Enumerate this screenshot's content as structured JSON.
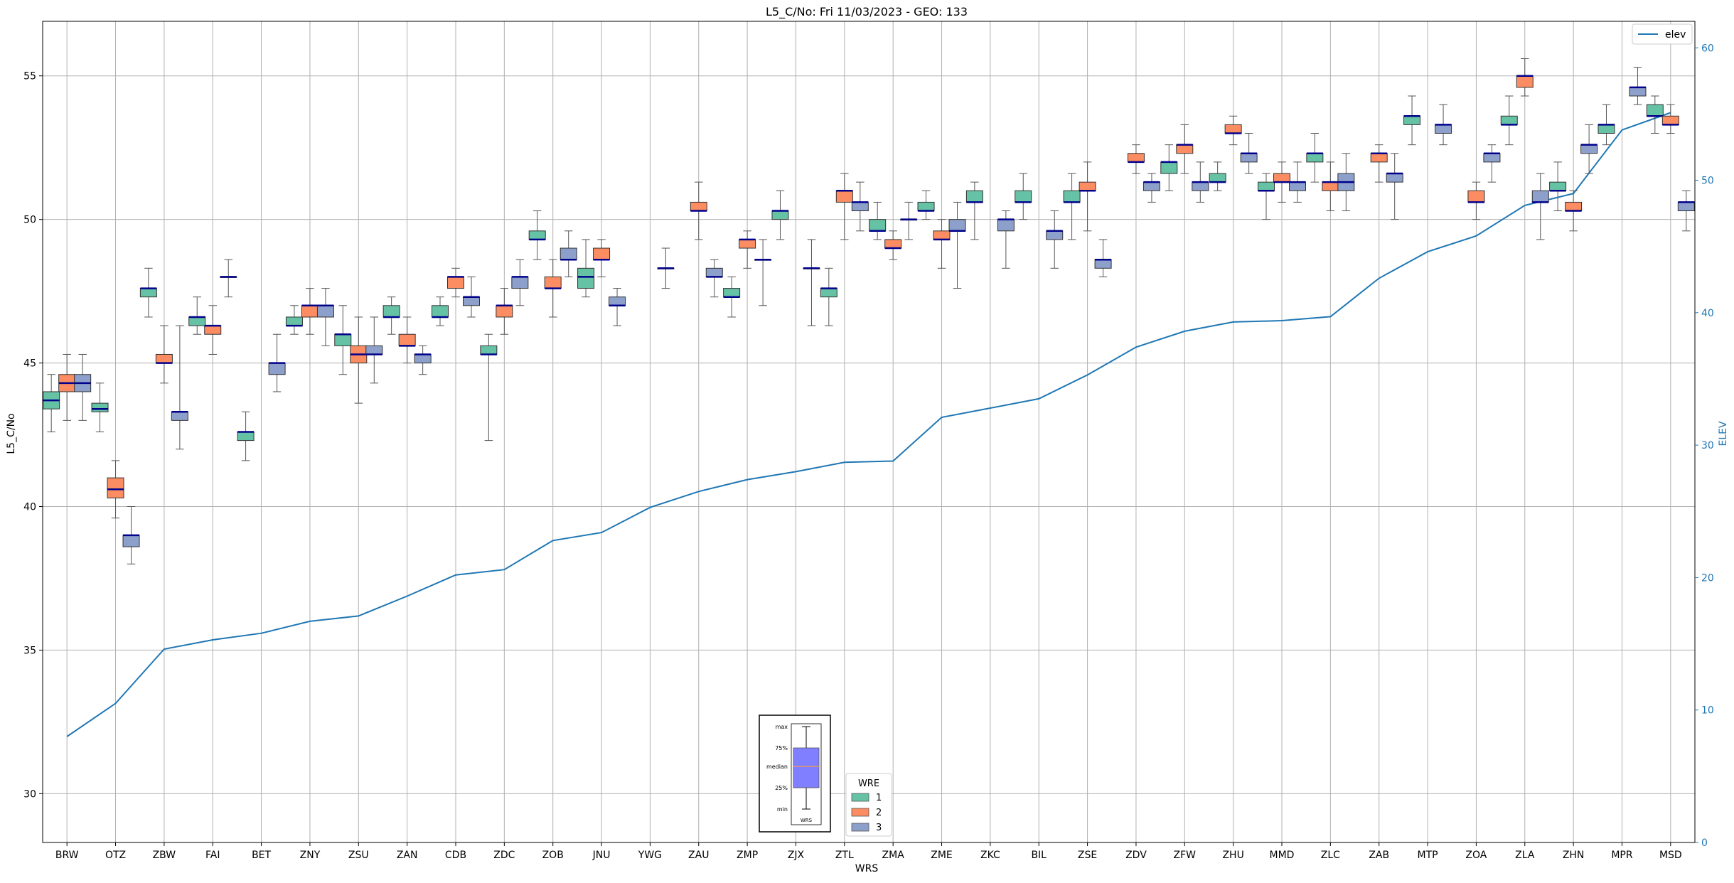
{
  "chart_data": {
    "type": "box",
    "title": "L5_C/No: Fri 11/03/2023 - GEO: 133",
    "xlabel": "WRS",
    "ylabel": "L5_C/No",
    "y2label": "ELEV",
    "ylim": [
      28.3,
      56.9
    ],
    "y2lim": [
      0,
      62
    ],
    "yticks": [
      30,
      35,
      40,
      45,
      50,
      55
    ],
    "y2ticks": [
      0,
      10,
      20,
      30,
      40,
      50,
      60
    ],
    "grid": true,
    "categories": [
      "BRW",
      "OTZ",
      "ZBW",
      "FAI",
      "BET",
      "ZNY",
      "ZSU",
      "ZAN",
      "CDB",
      "ZDC",
      "ZOB",
      "JNU",
      "YWG",
      "ZAU",
      "ZMP",
      "ZJX",
      "ZTL",
      "ZMA",
      "ZME",
      "ZKC",
      "BIL",
      "ZSE",
      "ZDV",
      "ZFW",
      "ZHU",
      "MMD",
      "ZLC",
      "ZAB",
      "MTP",
      "ZOA",
      "ZLA",
      "ZHN",
      "MPR",
      "MSD"
    ],
    "colors": {
      "1": "#66c2a5",
      "2": "#fc8d62",
      "3": "#8da0cb",
      "median": "#00008b",
      "elev": "#1f77b4",
      "whisker": "#555555",
      "grid": "#b0b0b0"
    },
    "legend_group": {
      "title": "WRE",
      "entries": [
        "1",
        "2",
        "3"
      ],
      "placement": "bottom-center"
    },
    "legend_elev": {
      "label": "elev",
      "placement": "top-right"
    },
    "legend_key": {
      "labels": [
        "max",
        "75%",
        "median",
        "25%",
        "min"
      ],
      "xlabel": "WRS",
      "placement": "bottom-center"
    },
    "series": [
      {
        "name": "1",
        "boxes": [
          {
            "cat": "BRW",
            "whislo": 42.6,
            "q1": 43.4,
            "med": 43.7,
            "q3": 44.0,
            "whishi": 44.6
          },
          {
            "cat": "OTZ",
            "whislo": 42.6,
            "q1": 43.3,
            "med": 43.4,
            "q3": 43.6,
            "whishi": 44.3
          },
          {
            "cat": "ZBW",
            "whislo": 46.6,
            "q1": 47.3,
            "med": 47.6,
            "q3": 47.6,
            "whishi": 48.3
          },
          {
            "cat": "FAI",
            "whislo": 46.0,
            "q1": 46.3,
            "med": 46.6,
            "q3": 46.6,
            "whishi": 47.3
          },
          {
            "cat": "BET",
            "whislo": 41.6,
            "q1": 42.3,
            "med": 42.6,
            "q3": 42.6,
            "whishi": 43.3
          },
          {
            "cat": "ZNY",
            "whislo": 46.0,
            "q1": 46.3,
            "med": 46.3,
            "q3": 46.6,
            "whishi": 47.0
          },
          {
            "cat": "ZSU",
            "whislo": 44.6,
            "q1": 45.6,
            "med": 46.0,
            "q3": 46.0,
            "whishi": 47.0
          },
          {
            "cat": "ZAN",
            "whislo": 46.0,
            "q1": 46.6,
            "med": 46.6,
            "q3": 47.0,
            "whishi": 47.3
          },
          {
            "cat": "CDB",
            "whislo": 46.3,
            "q1": 46.6,
            "med": 46.6,
            "q3": 47.0,
            "whishi": 47.3
          },
          {
            "cat": "ZDC",
            "whislo": 42.3,
            "q1": 45.3,
            "med": 45.3,
            "q3": 45.6,
            "whishi": 46.0
          },
          {
            "cat": "ZOB",
            "whislo": 48.6,
            "q1": 49.3,
            "med": 49.3,
            "q3": 49.6,
            "whishi": 50.3
          },
          {
            "cat": "JNU",
            "whislo": 47.3,
            "q1": 47.6,
            "med": 48.0,
            "q3": 48.3,
            "whishi": 49.3
          },
          {
            "cat": "ZMP",
            "whislo": 46.6,
            "q1": 47.3,
            "med": 47.3,
            "q3": 47.6,
            "whishi": 48.0
          },
          {
            "cat": "ZJX",
            "whislo": 49.3,
            "q1": 50.0,
            "med": 50.3,
            "q3": 50.3,
            "whishi": 51.0
          },
          {
            "cat": "ZTL",
            "whislo": 46.3,
            "q1": 47.3,
            "med": 47.6,
            "q3": 47.6,
            "whishi": 48.3
          },
          {
            "cat": "ZMA",
            "whislo": 49.3,
            "q1": 49.6,
            "med": 49.6,
            "q3": 50.0,
            "whishi": 50.6
          },
          {
            "cat": "ZME",
            "whislo": 50.0,
            "q1": 50.3,
            "med": 50.3,
            "q3": 50.6,
            "whishi": 51.0
          },
          {
            "cat": "ZKC",
            "whislo": 49.3,
            "q1": 50.6,
            "med": 50.6,
            "q3": 51.0,
            "whishi": 51.3
          },
          {
            "cat": "BIL",
            "whislo": 50.0,
            "q1": 50.6,
            "med": 50.6,
            "q3": 51.0,
            "whishi": 51.6
          },
          {
            "cat": "ZSE",
            "whislo": 49.3,
            "q1": 50.6,
            "med": 50.6,
            "q3": 51.0,
            "whishi": 51.6
          },
          {
            "cat": "ZFW",
            "whislo": 51.0,
            "q1": 51.6,
            "med": 52.0,
            "q3": 52.0,
            "whishi": 52.6
          },
          {
            "cat": "ZHU",
            "whislo": 51.0,
            "q1": 51.3,
            "med": 51.3,
            "q3": 51.6,
            "whishi": 52.0
          },
          {
            "cat": "MMD",
            "whislo": 50.0,
            "q1": 51.0,
            "med": 51.0,
            "q3": 51.3,
            "whishi": 51.6
          },
          {
            "cat": "ZLC",
            "whislo": 51.3,
            "q1": 52.0,
            "med": 52.3,
            "q3": 52.3,
            "whishi": 53.0
          },
          {
            "cat": "MTP",
            "whislo": 52.6,
            "q1": 53.3,
            "med": 53.6,
            "q3": 53.6,
            "whishi": 54.3
          },
          {
            "cat": "ZLA",
            "whislo": 52.6,
            "q1": 53.3,
            "med": 53.3,
            "q3": 53.6,
            "whishi": 54.3
          },
          {
            "cat": "ZHN",
            "whislo": 50.3,
            "q1": 51.0,
            "med": 51.0,
            "q3": 51.3,
            "whishi": 52.0
          },
          {
            "cat": "MPR",
            "whislo": 52.6,
            "q1": 53.0,
            "med": 53.3,
            "q3": 53.3,
            "whishi": 54.0
          },
          {
            "cat": "MSD",
            "whislo": 53.0,
            "q1": 53.6,
            "med": 53.6,
            "q3": 54.0,
            "whishi": 54.3
          }
        ]
      },
      {
        "name": "2",
        "boxes": [
          {
            "cat": "BRW",
            "whislo": 43.0,
            "q1": 44.0,
            "med": 44.3,
            "q3": 44.6,
            "whishi": 45.3
          },
          {
            "cat": "OTZ",
            "whislo": 39.6,
            "q1": 40.3,
            "med": 40.6,
            "q3": 41.0,
            "whishi": 41.6
          },
          {
            "cat": "ZBW",
            "whislo": 44.3,
            "q1": 45.0,
            "med": 45.0,
            "q3": 45.3,
            "whishi": 46.3
          },
          {
            "cat": "FAI",
            "whislo": 45.3,
            "q1": 46.0,
            "med": 46.3,
            "q3": 46.3,
            "whishi": 47.0
          },
          {
            "cat": "ZNY",
            "whislo": 46.0,
            "q1": 46.6,
            "med": 47.0,
            "q3": 47.0,
            "whishi": 47.6
          },
          {
            "cat": "ZSU",
            "whislo": 43.6,
            "q1": 45.0,
            "med": 45.3,
            "q3": 45.6,
            "whishi": 46.6
          },
          {
            "cat": "ZAN",
            "whislo": 45.0,
            "q1": 45.6,
            "med": 45.6,
            "q3": 46.0,
            "whishi": 46.6
          },
          {
            "cat": "CDB",
            "whislo": 47.3,
            "q1": 47.6,
            "med": 48.0,
            "q3": 48.0,
            "whishi": 48.3
          },
          {
            "cat": "ZDC",
            "whislo": 46.0,
            "q1": 46.6,
            "med": 47.0,
            "q3": 47.0,
            "whishi": 47.6
          },
          {
            "cat": "ZOB",
            "whislo": 46.6,
            "q1": 47.6,
            "med": 47.6,
            "q3": 48.0,
            "whishi": 48.6
          },
          {
            "cat": "JNU",
            "whislo": 48.0,
            "q1": 48.6,
            "med": 48.6,
            "q3": 49.0,
            "whishi": 49.3
          },
          {
            "cat": "ZAU",
            "whislo": 49.3,
            "q1": 50.3,
            "med": 50.3,
            "q3": 50.6,
            "whishi": 51.3
          },
          {
            "cat": "ZMP",
            "whislo": 48.3,
            "q1": 49.0,
            "med": 49.3,
            "q3": 49.3,
            "whishi": 49.6
          },
          {
            "cat": "ZTL",
            "whislo": 49.3,
            "q1": 50.6,
            "med": 51.0,
            "q3": 51.0,
            "whishi": 51.6
          },
          {
            "cat": "ZMA",
            "whislo": 48.6,
            "q1": 49.0,
            "med": 49.0,
            "q3": 49.3,
            "whishi": 49.6
          },
          {
            "cat": "ZME",
            "whislo": 48.3,
            "q1": 49.3,
            "med": 49.3,
            "q3": 49.6,
            "whishi": 50.0
          },
          {
            "cat": "ZSE",
            "whislo": 49.6,
            "q1": 51.0,
            "med": 51.0,
            "q3": 51.3,
            "whishi": 52.0
          },
          {
            "cat": "ZDV",
            "whislo": 51.6,
            "q1": 52.0,
            "med": 52.0,
            "q3": 52.3,
            "whishi": 52.6
          },
          {
            "cat": "ZFW",
            "whislo": 51.6,
            "q1": 52.3,
            "med": 52.6,
            "q3": 52.6,
            "whishi": 53.3
          },
          {
            "cat": "ZHU",
            "whislo": 52.6,
            "q1": 53.0,
            "med": 53.0,
            "q3": 53.3,
            "whishi": 53.6
          },
          {
            "cat": "MMD",
            "whislo": 50.6,
            "q1": 51.3,
            "med": 51.3,
            "q3": 51.6,
            "whishi": 52.0
          },
          {
            "cat": "ZLC",
            "whislo": 50.3,
            "q1": 51.0,
            "med": 51.3,
            "q3": 51.3,
            "whishi": 52.0
          },
          {
            "cat": "ZAB",
            "whislo": 51.3,
            "q1": 52.0,
            "med": 52.3,
            "q3": 52.3,
            "whishi": 52.6
          },
          {
            "cat": "ZOA",
            "whislo": 50.0,
            "q1": 50.6,
            "med": 50.6,
            "q3": 51.0,
            "whishi": 51.3
          },
          {
            "cat": "ZLA",
            "whislo": 54.3,
            "q1": 54.6,
            "med": 55.0,
            "q3": 55.0,
            "whishi": 55.6
          },
          {
            "cat": "ZHN",
            "whislo": 49.6,
            "q1": 50.3,
            "med": 50.3,
            "q3": 50.6,
            "whishi": 51.0
          },
          {
            "cat": "MSD",
            "whislo": 53.0,
            "q1": 53.3,
            "med": 53.3,
            "q3": 53.6,
            "whishi": 54.0
          }
        ]
      },
      {
        "name": "3",
        "boxes": [
          {
            "cat": "BRW",
            "whislo": 43.0,
            "q1": 44.0,
            "med": 44.3,
            "q3": 44.6,
            "whishi": 45.3
          },
          {
            "cat": "OTZ",
            "whislo": 38.0,
            "q1": 38.6,
            "med": 39.0,
            "q3": 39.0,
            "whishi": 40.0
          },
          {
            "cat": "ZBW",
            "whislo": 42.0,
            "q1": 43.0,
            "med": 43.3,
            "q3": 43.3,
            "whishi": 46.3
          },
          {
            "cat": "FAI",
            "whislo": 47.3,
            "q1": 48.0,
            "med": 48.0,
            "q3": 48.0,
            "whishi": 48.6
          },
          {
            "cat": "BET",
            "whislo": 44.0,
            "q1": 44.6,
            "med": 45.0,
            "q3": 45.0,
            "whishi": 46.0
          },
          {
            "cat": "ZNY",
            "whislo": 45.6,
            "q1": 46.6,
            "med": 47.0,
            "q3": 47.0,
            "whishi": 47.6
          },
          {
            "cat": "ZSU",
            "whislo": 44.3,
            "q1": 45.3,
            "med": 45.3,
            "q3": 45.6,
            "whishi": 46.6
          },
          {
            "cat": "ZAN",
            "whislo": 44.6,
            "q1": 45.0,
            "med": 45.3,
            "q3": 45.3,
            "whishi": 45.6
          },
          {
            "cat": "CDB",
            "whislo": 46.6,
            "q1": 47.0,
            "med": 47.3,
            "q3": 47.3,
            "whishi": 48.0
          },
          {
            "cat": "ZDC",
            "whislo": 47.0,
            "q1": 47.6,
            "med": 48.0,
            "q3": 48.0,
            "whishi": 48.6
          },
          {
            "cat": "ZOB",
            "whislo": 48.0,
            "q1": 48.6,
            "med": 48.6,
            "q3": 49.0,
            "whishi": 49.6
          },
          {
            "cat": "JNU",
            "whislo": 46.3,
            "q1": 47.0,
            "med": 47.0,
            "q3": 47.3,
            "whishi": 47.6
          },
          {
            "cat": "YWG",
            "whislo": 47.6,
            "q1": 48.3,
            "med": 48.3,
            "q3": 48.3,
            "whishi": 49.0
          },
          {
            "cat": "ZAU",
            "whislo": 47.3,
            "q1": 48.0,
            "med": 48.0,
            "q3": 48.3,
            "whishi": 48.6
          },
          {
            "cat": "ZMP",
            "whislo": 47.0,
            "q1": 48.6,
            "med": 48.6,
            "q3": 48.6,
            "whishi": 49.3
          },
          {
            "cat": "ZJX",
            "whislo": 46.3,
            "q1": 48.3,
            "med": 48.3,
            "q3": 48.3,
            "whishi": 49.3
          },
          {
            "cat": "ZTL",
            "whislo": 49.6,
            "q1": 50.3,
            "med": 50.6,
            "q3": 50.6,
            "whishi": 51.3
          },
          {
            "cat": "ZMA",
            "whislo": 49.3,
            "q1": 50.0,
            "med": 50.0,
            "q3": 50.0,
            "whishi": 50.6
          },
          {
            "cat": "ZME",
            "whislo": 47.6,
            "q1": 49.6,
            "med": 49.6,
            "q3": 50.0,
            "whishi": 50.6
          },
          {
            "cat": "ZKC",
            "whislo": 48.3,
            "q1": 49.6,
            "med": 50.0,
            "q3": 50.0,
            "whishi": 50.3
          },
          {
            "cat": "BIL",
            "whislo": 48.3,
            "q1": 49.3,
            "med": 49.6,
            "q3": 49.6,
            "whishi": 50.3
          },
          {
            "cat": "ZSE",
            "whislo": 48.0,
            "q1": 48.3,
            "med": 48.6,
            "q3": 48.6,
            "whishi": 49.3
          },
          {
            "cat": "ZDV",
            "whislo": 50.6,
            "q1": 51.0,
            "med": 51.3,
            "q3": 51.3,
            "whishi": 51.6
          },
          {
            "cat": "ZFW",
            "whislo": 50.6,
            "q1": 51.0,
            "med": 51.3,
            "q3": 51.3,
            "whishi": 52.0
          },
          {
            "cat": "ZHU",
            "whislo": 51.6,
            "q1": 52.0,
            "med": 52.3,
            "q3": 52.3,
            "whishi": 53.0
          },
          {
            "cat": "MMD",
            "whislo": 50.6,
            "q1": 51.0,
            "med": 51.3,
            "q3": 51.3,
            "whishi": 52.0
          },
          {
            "cat": "ZLC",
            "whislo": 50.3,
            "q1": 51.0,
            "med": 51.3,
            "q3": 51.6,
            "whishi": 52.3
          },
          {
            "cat": "ZAB",
            "whislo": 50.0,
            "q1": 51.3,
            "med": 51.6,
            "q3": 51.6,
            "whishi": 52.3
          },
          {
            "cat": "MTP",
            "whislo": 52.6,
            "q1": 53.0,
            "med": 53.3,
            "q3": 53.3,
            "whishi": 54.0
          },
          {
            "cat": "ZOA",
            "whislo": 51.3,
            "q1": 52.0,
            "med": 52.3,
            "q3": 52.3,
            "whishi": 52.6
          },
          {
            "cat": "ZLA",
            "whislo": 49.3,
            "q1": 50.6,
            "med": 50.6,
            "q3": 51.0,
            "whishi": 51.6
          },
          {
            "cat": "ZHN",
            "whislo": 51.6,
            "q1": 52.3,
            "med": 52.6,
            "q3": 52.6,
            "whishi": 53.3
          },
          {
            "cat": "MPR",
            "whislo": 54.0,
            "q1": 54.3,
            "med": 54.6,
            "q3": 54.6,
            "whishi": 55.3
          },
          {
            "cat": "MSD",
            "whislo": 49.6,
            "q1": 50.3,
            "med": 50.6,
            "q3": 50.6,
            "whishi": 51.0
          }
        ]
      }
    ],
    "elev_series": {
      "name": "elev",
      "values": [
        8.0,
        10.5,
        14.6,
        15.3,
        15.8,
        16.7,
        17.1,
        18.6,
        20.2,
        20.6,
        22.8,
        23.4,
        25.3,
        26.5,
        27.4,
        28.0,
        28.7,
        28.8,
        32.1,
        32.8,
        33.5,
        35.3,
        37.4,
        38.6,
        39.3,
        39.4,
        39.7,
        42.6,
        44.6,
        45.8,
        48.1,
        49.0,
        53.8,
        55.1
      ]
    }
  }
}
